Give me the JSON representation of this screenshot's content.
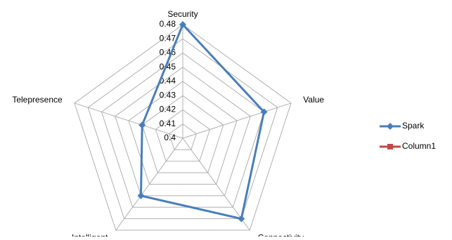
{
  "chart_data": {
    "type": "radar",
    "categories": [
      "Security",
      "Value",
      "Connectivity",
      "Intelligent",
      "Telepresence"
    ],
    "series": [
      {
        "name": "Spark",
        "color": "#4a7ebb",
        "values": [
          0.48,
          0.46,
          0.47,
          0.45,
          0.43
        ]
      },
      {
        "name": "Column1",
        "color": "#be4b48",
        "values": [
          null,
          null,
          null,
          null,
          null
        ]
      }
    ],
    "rlim": [
      0.4,
      0.48
    ],
    "rticks": [
      0.4,
      0.41,
      0.42,
      0.43,
      0.44,
      0.45,
      0.46,
      0.47,
      0.48
    ],
    "grid": true,
    "legend": "right"
  }
}
